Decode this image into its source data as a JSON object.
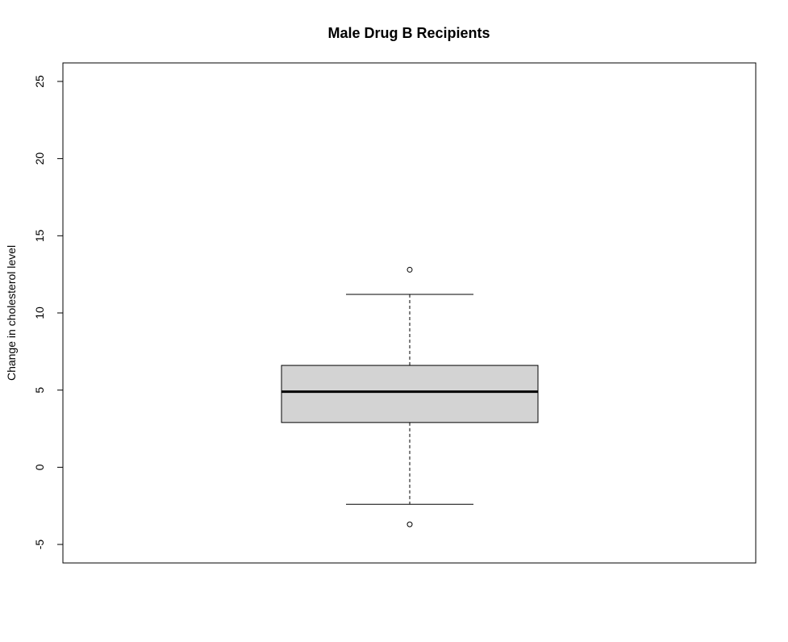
{
  "chart_data": {
    "type": "boxplot",
    "title": "Male Drug B Recipients",
    "xlabel": "",
    "ylabel": "Change in cholesterol level",
    "ylim": [
      -6.2,
      26.2
    ],
    "yticks": [
      -5,
      0,
      5,
      10,
      15,
      20,
      25
    ],
    "ytick_labels": [
      "-5",
      "0",
      "5",
      "10",
      "15",
      "20",
      "25"
    ],
    "grid": false,
    "legend": "none",
    "box": {
      "min_whisker": -2.4,
      "q1": 2.9,
      "median": 4.9,
      "q3": 6.6,
      "max_whisker": 11.2
    },
    "outliers": [
      12.8,
      -3.7
    ],
    "colors": {
      "box_fill": "#d3d3d3",
      "stroke": "#000000",
      "background": "#ffffff"
    }
  }
}
